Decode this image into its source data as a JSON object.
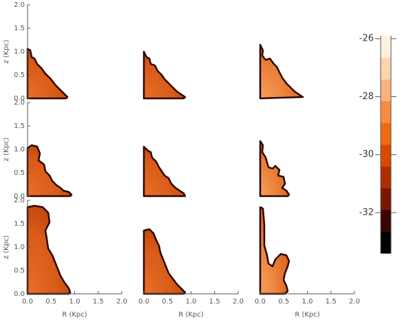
{
  "chart_data": {
    "type": "image",
    "xlabel": "R (Kpc)",
    "ylabel": "z (Kpc)",
    "xlim": [
      0,
      2
    ],
    "ylim": [
      0,
      2
    ],
    "xticks": [
      {
        "value": 0,
        "label": "0.0"
      },
      {
        "value": 0.5,
        "label": "0.5"
      },
      {
        "value": 1,
        "label": "1.0"
      },
      {
        "value": 1.5,
        "label": "1.5"
      },
      {
        "value": 2,
        "label": "2.0"
      }
    ],
    "yticks": [
      {
        "value": 0,
        "label": "0.0"
      },
      {
        "value": 0.5,
        "label": "0.5"
      },
      {
        "value": 1,
        "label": "1.0"
      },
      {
        "value": 1.5,
        "label": "1.5"
      },
      {
        "value": 2,
        "label": "2.0"
      }
    ],
    "colorbar": {
      "clim": [
        -33.4,
        -25.9
      ],
      "ticks": [
        -26,
        -28,
        -30,
        -32
      ],
      "colormap": [
        "#000000",
        "#3a0500",
        "#7a1600",
        "#b02e00",
        "#d84a00",
        "#f06a10",
        "#f88c3c",
        "#fbb27a",
        "#fdd3b0",
        "#fff0e0"
      ]
    }
  }
}
